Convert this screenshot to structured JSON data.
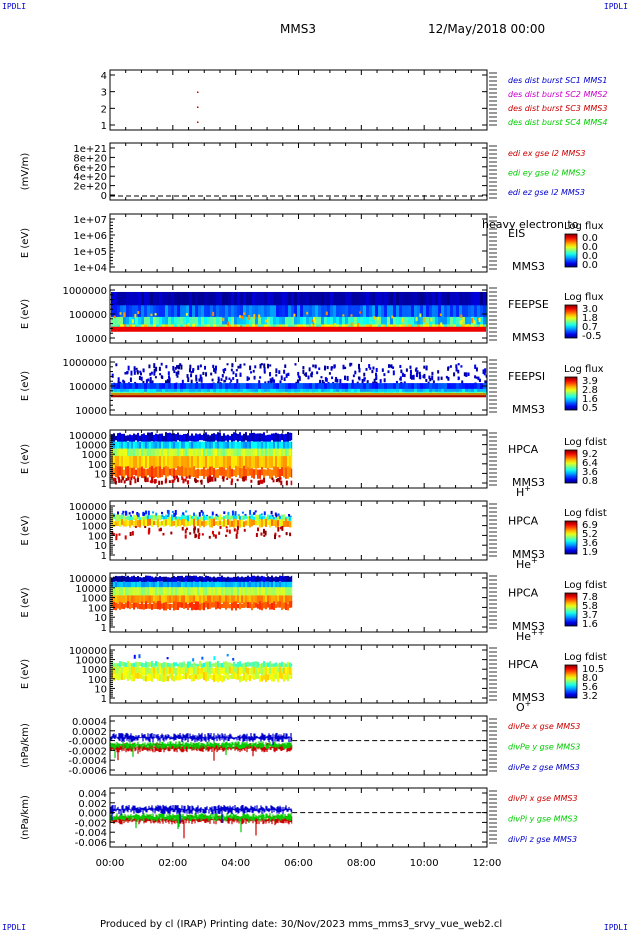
{
  "corner_label": "IPDLI",
  "header": {
    "spacecraft": "MMS3",
    "date": "12/May/2018 00:00"
  },
  "footer": {
    "text": "Produced by cl (IRAP)   Printing date: 30/Nov/2023   mms_mms3_srvy_vue_web2.cl"
  },
  "time_axis": {
    "ticks": [
      "00:00",
      "02:00",
      "04:00",
      "06:00",
      "08:00",
      "10:00",
      "12:00"
    ],
    "range_hours": [
      0,
      12
    ]
  },
  "colors": {
    "red": "#cc0000",
    "green": "#00cc00",
    "blue": "#0000cc",
    "magenta": "#cc00cc"
  },
  "chart_data": [
    {
      "type": "scatter",
      "ylabel": "",
      "yticks": [
        "4",
        "3",
        "2",
        "1"
      ],
      "ylim": [
        0.5,
        4.5
      ],
      "legend": [
        {
          "label": "des dist burst SC1 MMS1",
          "color": "#0000cc"
        },
        {
          "label": "des dist burst SC2 MMS2",
          "color": "#cc00cc"
        },
        {
          "label": "des dist burst SC3 MMS3",
          "color": "#cc0000"
        },
        {
          "label": "des dist burst SC4 MMS4",
          "color": "#00cc00"
        }
      ],
      "points": [
        {
          "x": 1.4,
          "y": 3
        },
        {
          "x": 1.4,
          "y": 2
        },
        {
          "x": 1.4,
          "y": 1
        }
      ]
    },
    {
      "type": "line",
      "ylabel": "(mV/m)",
      "yticks": [
        "1e+21",
        "8e+20",
        "6e+20",
        "4e+20",
        "2e+20",
        "0"
      ],
      "ylim": [
        0,
        1e+21
      ],
      "legend": [
        {
          "label": "edi ex gse l2 MMS3",
          "color": "#cc0000"
        },
        {
          "label": "edi ey gse l2 MMS3",
          "color": "#00cc00"
        },
        {
          "label": "edi ez gse l2 MMS3",
          "color": "#0000cc"
        }
      ],
      "zero_line": true
    },
    {
      "type": "heatmap",
      "ylabel": "E (eV)",
      "yticks": [
        "1e+07",
        "1e+06",
        "1e+05",
        "1e+04"
      ],
      "ylim": [
        10000,
        10000000
      ],
      "log": true,
      "instrument": "EIS",
      "spacecraft": "MMS3",
      "extra_label": "heavy electron to",
      "colorbar": {
        "title": "Log flux",
        "ticks": [
          "0.0",
          "0.0",
          "0.0",
          "0.0"
        ]
      }
    },
    {
      "type": "heatmap",
      "ylabel": "E (eV)",
      "yticks": [
        "1000000",
        "100000",
        "10000"
      ],
      "ylim": [
        10000,
        1000000
      ],
      "log": true,
      "instrument": "FEEPSE",
      "spacecraft": "MMS3",
      "colorbar": {
        "title": "Log flux",
        "ticks": [
          "3.0",
          "1.8",
          "0.7",
          "-0.5"
        ]
      },
      "data_hours": [
        0,
        12
      ]
    },
    {
      "type": "heatmap",
      "ylabel": "E (eV)",
      "yticks": [
        "1000000",
        "100000",
        "10000"
      ],
      "ylim": [
        10000,
        1000000
      ],
      "log": true,
      "instrument": "FEEPSI",
      "spacecraft": "MMS3",
      "colorbar": {
        "title": "Log flux",
        "ticks": [
          "3.9",
          "2.8",
          "1.6",
          "0.5"
        ]
      },
      "data_hours": [
        0,
        12
      ]
    },
    {
      "type": "heatmap",
      "ylabel": "E (eV)",
      "yticks": [
        "100000",
        "10000",
        "1000",
        "100",
        "10",
        "1"
      ],
      "ylim": [
        1,
        100000
      ],
      "log": true,
      "instrument": "HPCA",
      "spacecraft": "MMS3",
      "species": "H",
      "charge": "+",
      "colorbar": {
        "title": "Log fdist",
        "ticks": [
          "9.2",
          "6.4",
          "3.6",
          "0.8"
        ]
      },
      "data_hours": [
        0,
        5.8
      ]
    },
    {
      "type": "heatmap",
      "ylabel": "E (eV)",
      "yticks": [
        "100000",
        "10000",
        "1000",
        "100",
        "10",
        "1"
      ],
      "ylim": [
        1,
        100000
      ],
      "log": true,
      "instrument": "HPCA",
      "spacecraft": "MMS3",
      "species": "He",
      "charge": "+",
      "colorbar": {
        "title": "Log fdist",
        "ticks": [
          "6.9",
          "5.2",
          "3.6",
          "1.9"
        ]
      },
      "data_hours": [
        0,
        5.8
      ]
    },
    {
      "type": "heatmap",
      "ylabel": "E (eV)",
      "yticks": [
        "100000",
        "10000",
        "1000",
        "100",
        "10",
        "1"
      ],
      "ylim": [
        1,
        100000
      ],
      "log": true,
      "instrument": "HPCA",
      "spacecraft": "MMS3",
      "species": "He",
      "charge": "++",
      "colorbar": {
        "title": "Log fdist",
        "ticks": [
          "7.8",
          "5.8",
          "3.7",
          "1.6"
        ]
      },
      "data_hours": [
        0,
        5.8
      ]
    },
    {
      "type": "heatmap",
      "ylabel": "E (eV)",
      "yticks": [
        "100000",
        "10000",
        "1000",
        "100",
        "10",
        "1"
      ],
      "ylim": [
        1,
        100000
      ],
      "log": true,
      "instrument": "HPCA",
      "spacecraft": "MMS3",
      "species": "O",
      "charge": "+",
      "colorbar": {
        "title": "Log fdist",
        "ticks": [
          "10.5",
          "8.0",
          "5.6",
          "3.2"
        ]
      },
      "data_hours": [
        0,
        5.8
      ]
    },
    {
      "type": "line",
      "ylabel": "(nPa/km)",
      "yticks": [
        "0.0004",
        "0.0002",
        "-0.0000",
        "-0.0002",
        "-0.0004",
        "-0.0006"
      ],
      "ylim": [
        -0.0007,
        0.0005
      ],
      "legend": [
        {
          "label": "divPe x gse MMS3",
          "color": "#cc0000"
        },
        {
          "label": "divPe y gse MMS3",
          "color": "#00cc00"
        },
        {
          "label": "divPe z gse MMS3",
          "color": "#0000cc"
        }
      ],
      "zero_line": true,
      "data_hours": [
        0,
        5.8
      ]
    },
    {
      "type": "line",
      "ylabel": "(nPa/km)",
      "yticks": [
        "0.004",
        "0.002",
        "0.000",
        "-0.002",
        "-0.004",
        "-0.006"
      ],
      "ylim": [
        -0.007,
        0.005
      ],
      "legend": [
        {
          "label": "divPi x gse MMS3",
          "color": "#cc0000"
        },
        {
          "label": "divPi y gse MMS3",
          "color": "#00cc00"
        },
        {
          "label": "divPi z gse MMS3",
          "color": "#0000cc"
        }
      ],
      "zero_line": true,
      "data_hours": [
        0,
        5.8
      ]
    }
  ]
}
